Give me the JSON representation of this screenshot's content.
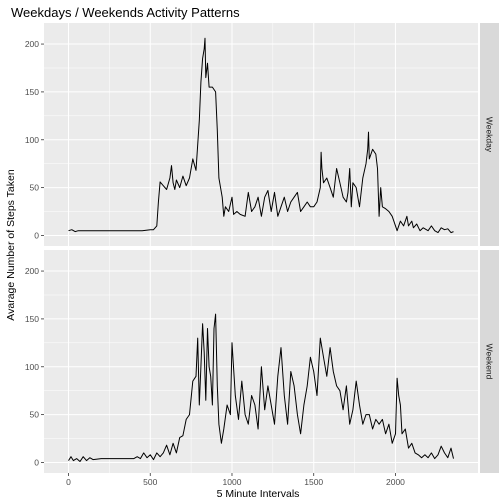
{
  "chart_data": {
    "type": "line",
    "title": "Weekdays / Weekends Activity Patterns",
    "xlabel": "5 Minute Intervals",
    "ylabel": "Avarage Number of Steps Taken",
    "xlim": [
      -150,
      2505
    ],
    "ylim": [
      -11,
      222
    ],
    "x_ticks": [
      0,
      500,
      1000,
      1500,
      2000
    ],
    "y_ticks": [
      0,
      50,
      100,
      150,
      200
    ],
    "grid": true,
    "colors": {
      "panel_bg": "#ebebeb",
      "grid_major": "#ffffff",
      "strip_bg": "#d9d9d9",
      "line": "#000000",
      "tick_text": "#4d4d4d"
    },
    "panels": [
      {
        "strip": "Weekday",
        "points": [
          [
            0,
            5
          ],
          [
            20,
            6
          ],
          [
            40,
            4
          ],
          [
            60,
            5
          ],
          [
            100,
            5
          ],
          [
            150,
            5
          ],
          [
            200,
            5
          ],
          [
            250,
            5
          ],
          [
            300,
            5
          ],
          [
            350,
            5
          ],
          [
            400,
            5
          ],
          [
            450,
            5
          ],
          [
            500,
            6
          ],
          [
            520,
            6
          ],
          [
            540,
            10
          ],
          [
            550,
            35
          ],
          [
            560,
            56
          ],
          [
            580,
            52
          ],
          [
            600,
            48
          ],
          [
            620,
            60
          ],
          [
            630,
            73
          ],
          [
            640,
            55
          ],
          [
            650,
            48
          ],
          [
            660,
            58
          ],
          [
            680,
            50
          ],
          [
            700,
            62
          ],
          [
            720,
            52
          ],
          [
            740,
            60
          ],
          [
            760,
            80
          ],
          [
            780,
            68
          ],
          [
            800,
            120
          ],
          [
            810,
            160
          ],
          [
            820,
            185
          ],
          [
            830,
            195
          ],
          [
            835,
            206
          ],
          [
            840,
            165
          ],
          [
            850,
            180
          ],
          [
            860,
            155
          ],
          [
            880,
            155
          ],
          [
            900,
            150
          ],
          [
            910,
            110
          ],
          [
            920,
            60
          ],
          [
            940,
            40
          ],
          [
            950,
            20
          ],
          [
            960,
            30
          ],
          [
            980,
            25
          ],
          [
            1000,
            40
          ],
          [
            1010,
            22
          ],
          [
            1030,
            25
          ],
          [
            1050,
            22
          ],
          [
            1080,
            20
          ],
          [
            1100,
            45
          ],
          [
            1120,
            25
          ],
          [
            1140,
            30
          ],
          [
            1160,
            40
          ],
          [
            1180,
            20
          ],
          [
            1200,
            40
          ],
          [
            1220,
            47
          ],
          [
            1240,
            25
          ],
          [
            1260,
            45
          ],
          [
            1280,
            20
          ],
          [
            1300,
            30
          ],
          [
            1320,
            40
          ],
          [
            1340,
            25
          ],
          [
            1360,
            35
          ],
          [
            1380,
            40
          ],
          [
            1400,
            45
          ],
          [
            1420,
            25
          ],
          [
            1440,
            30
          ],
          [
            1460,
            35
          ],
          [
            1480,
            30
          ],
          [
            1500,
            30
          ],
          [
            1520,
            35
          ],
          [
            1540,
            50
          ],
          [
            1545,
            87
          ],
          [
            1550,
            70
          ],
          [
            1560,
            55
          ],
          [
            1580,
            60
          ],
          [
            1600,
            50
          ],
          [
            1620,
            40
          ],
          [
            1640,
            70
          ],
          [
            1660,
            55
          ],
          [
            1680,
            40
          ],
          [
            1700,
            35
          ],
          [
            1710,
            45
          ],
          [
            1720,
            70
          ],
          [
            1730,
            30
          ],
          [
            1740,
            55
          ],
          [
            1760,
            50
          ],
          [
            1780,
            30
          ],
          [
            1800,
            60
          ],
          [
            1820,
            75
          ],
          [
            1830,
            90
          ],
          [
            1835,
            108
          ],
          [
            1840,
            80
          ],
          [
            1860,
            90
          ],
          [
            1880,
            85
          ],
          [
            1890,
            70
          ],
          [
            1900,
            20
          ],
          [
            1910,
            50
          ],
          [
            1920,
            30
          ],
          [
            1940,
            28
          ],
          [
            1960,
            25
          ],
          [
            1980,
            20
          ],
          [
            2000,
            10
          ],
          [
            2010,
            5
          ],
          [
            2030,
            15
          ],
          [
            2050,
            10
          ],
          [
            2070,
            20
          ],
          [
            2080,
            10
          ],
          [
            2100,
            15
          ],
          [
            2110,
            8
          ],
          [
            2130,
            12
          ],
          [
            2150,
            5
          ],
          [
            2170,
            8
          ],
          [
            2200,
            5
          ],
          [
            2220,
            10
          ],
          [
            2240,
            5
          ],
          [
            2260,
            3
          ],
          [
            2280,
            8
          ],
          [
            2300,
            6
          ],
          [
            2320,
            7
          ],
          [
            2340,
            3
          ],
          [
            2355,
            4
          ]
        ]
      },
      {
        "strip": "Weekend",
        "points": [
          [
            0,
            2
          ],
          [
            15,
            6
          ],
          [
            30,
            2
          ],
          [
            50,
            4
          ],
          [
            70,
            1
          ],
          [
            90,
            6
          ],
          [
            110,
            2
          ],
          [
            130,
            5
          ],
          [
            150,
            3
          ],
          [
            200,
            4
          ],
          [
            250,
            4
          ],
          [
            300,
            4
          ],
          [
            350,
            4
          ],
          [
            400,
            4
          ],
          [
            420,
            6
          ],
          [
            440,
            4
          ],
          [
            460,
            10
          ],
          [
            480,
            5
          ],
          [
            500,
            8
          ],
          [
            520,
            3
          ],
          [
            540,
            10
          ],
          [
            560,
            6
          ],
          [
            580,
            10
          ],
          [
            600,
            18
          ],
          [
            620,
            8
          ],
          [
            640,
            20
          ],
          [
            660,
            10
          ],
          [
            680,
            26
          ],
          [
            700,
            28
          ],
          [
            720,
            45
          ],
          [
            740,
            50
          ],
          [
            760,
            85
          ],
          [
            780,
            90
          ],
          [
            790,
            130
          ],
          [
            800,
            60
          ],
          [
            810,
            100
          ],
          [
            820,
            145
          ],
          [
            830,
            115
          ],
          [
            840,
            65
          ],
          [
            850,
            140
          ],
          [
            860,
            100
          ],
          [
            870,
            90
          ],
          [
            880,
            60
          ],
          [
            890,
            140
          ],
          [
            900,
            155
          ],
          [
            910,
            80
          ],
          [
            920,
            40
          ],
          [
            935,
            20
          ],
          [
            950,
            35
          ],
          [
            970,
            60
          ],
          [
            990,
            50
          ],
          [
            1000,
            125
          ],
          [
            1020,
            70
          ],
          [
            1040,
            45
          ],
          [
            1060,
            85
          ],
          [
            1080,
            50
          ],
          [
            1100,
            40
          ],
          [
            1120,
            70
          ],
          [
            1140,
            60
          ],
          [
            1160,
            35
          ],
          [
            1180,
            100
          ],
          [
            1200,
            55
          ],
          [
            1220,
            80
          ],
          [
            1240,
            60
          ],
          [
            1260,
            40
          ],
          [
            1280,
            90
          ],
          [
            1300,
            120
          ],
          [
            1320,
            70
          ],
          [
            1340,
            40
          ],
          [
            1360,
            95
          ],
          [
            1380,
            80
          ],
          [
            1400,
            50
          ],
          [
            1420,
            30
          ],
          [
            1440,
            60
          ],
          [
            1460,
            80
          ],
          [
            1480,
            110
          ],
          [
            1500,
            95
          ],
          [
            1520,
            70
          ],
          [
            1540,
            130
          ],
          [
            1560,
            110
          ],
          [
            1580,
            90
          ],
          [
            1600,
            120
          ],
          [
            1620,
            95
          ],
          [
            1640,
            80
          ],
          [
            1660,
            75
          ],
          [
            1680,
            55
          ],
          [
            1700,
            80
          ],
          [
            1720,
            40
          ],
          [
            1740,
            55
          ],
          [
            1760,
            85
          ],
          [
            1780,
            60
          ],
          [
            1800,
            40
          ],
          [
            1820,
            50
          ],
          [
            1840,
            50
          ],
          [
            1860,
            35
          ],
          [
            1880,
            45
          ],
          [
            1900,
            40
          ],
          [
            1920,
            45
          ],
          [
            1940,
            30
          ],
          [
            1960,
            40
          ],
          [
            1980,
            20
          ],
          [
            2000,
            30
          ],
          [
            2010,
            88
          ],
          [
            2020,
            70
          ],
          [
            2030,
            60
          ],
          [
            2040,
            30
          ],
          [
            2060,
            35
          ],
          [
            2080,
            15
          ],
          [
            2100,
            20
          ],
          [
            2120,
            10
          ],
          [
            2140,
            8
          ],
          [
            2160,
            5
          ],
          [
            2180,
            8
          ],
          [
            2200,
            5
          ],
          [
            2220,
            10
          ],
          [
            2240,
            4
          ],
          [
            2260,
            8
          ],
          [
            2280,
            17
          ],
          [
            2300,
            10
          ],
          [
            2320,
            5
          ],
          [
            2340,
            15
          ],
          [
            2355,
            4
          ]
        ]
      }
    ]
  }
}
